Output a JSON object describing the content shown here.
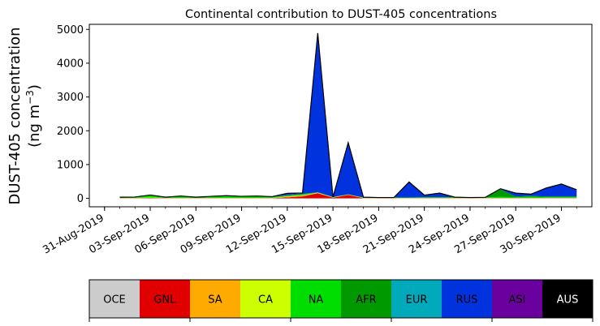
{
  "chart_data": {
    "type": "area",
    "title": "Continental contribution to DUST-405 concentrations",
    "ylabel_line1": "DUST-405 concentration",
    "ylabel_line2_prefix": "(ng m",
    "ylabel_line2_sup": "−3",
    "ylabel_line2_suffix": ")",
    "xlim": [
      "2019-08-30",
      "2019-10-02"
    ],
    "ylim": [
      -250,
      5150
    ],
    "yticks": [
      0,
      1000,
      2000,
      3000,
      4000,
      5000
    ],
    "xticks": [
      "31-Aug-2019",
      "03-Sep-2019",
      "06-Sep-2019",
      "09-Sep-2019",
      "12-Sep-2019",
      "15-Sep-2019",
      "18-Sep-2019",
      "21-Sep-2019",
      "24-Sep-2019",
      "27-Sep-2019",
      "30-Sep-2019"
    ],
    "xtick_dates": [
      "2019-08-31",
      "2019-09-03",
      "2019-09-06",
      "2019-09-09",
      "2019-09-12",
      "2019-09-15",
      "2019-09-18",
      "2019-09-21",
      "2019-09-24",
      "2019-09-27",
      "2019-09-30"
    ],
    "x": [
      "2019-09-01",
      "2019-09-02",
      "2019-09-03",
      "2019-09-04",
      "2019-09-05",
      "2019-09-06",
      "2019-09-07",
      "2019-09-08",
      "2019-09-09",
      "2019-09-10",
      "2019-09-11",
      "2019-09-12",
      "2019-09-13",
      "2019-09-14",
      "2019-09-15",
      "2019-09-16",
      "2019-09-17",
      "2019-09-18",
      "2019-09-19",
      "2019-09-20",
      "2019-09-21",
      "2019-09-22",
      "2019-09-23",
      "2019-09-24",
      "2019-09-25",
      "2019-09-26",
      "2019-09-27",
      "2019-09-28",
      "2019-09-29",
      "2019-09-30",
      "2019-10-01"
    ],
    "stack_order": [
      "GNL",
      "SA",
      "CA",
      "NA",
      "AFR",
      "EUR",
      "RUS",
      "ASI",
      "AUS",
      "OCE"
    ],
    "series": [
      {
        "name": "GNL",
        "color": "#e00000",
        "values": [
          5,
          5,
          10,
          5,
          5,
          5,
          5,
          5,
          5,
          5,
          5,
          30,
          60,
          150,
          20,
          100,
          5,
          5,
          5,
          5,
          5,
          5,
          5,
          5,
          5,
          5,
          5,
          5,
          5,
          5,
          5
        ]
      },
      {
        "name": "SA",
        "color": "#ffaa00",
        "values": [
          5,
          5,
          5,
          5,
          5,
          5,
          5,
          5,
          5,
          5,
          5,
          20,
          20,
          10,
          5,
          5,
          5,
          5,
          5,
          5,
          5,
          5,
          5,
          5,
          5,
          5,
          5,
          5,
          5,
          5,
          5
        ]
      },
      {
        "name": "CA",
        "color": "#ccff00",
        "values": [
          5,
          5,
          10,
          5,
          5,
          5,
          5,
          5,
          5,
          5,
          5,
          10,
          10,
          10,
          5,
          5,
          5,
          5,
          5,
          5,
          5,
          5,
          5,
          5,
          5,
          5,
          5,
          5,
          5,
          5,
          5
        ]
      },
      {
        "name": "NA",
        "color": "#00dd00",
        "values": [
          20,
          25,
          70,
          20,
          50,
          20,
          40,
          60,
          40,
          50,
          30,
          30,
          40,
          10,
          10,
          10,
          10,
          5,
          10,
          10,
          10,
          10,
          10,
          5,
          10,
          30,
          20,
          30,
          20,
          20,
          20
        ]
      },
      {
        "name": "AFR",
        "color": "#009900",
        "values": [
          0,
          0,
          0,
          0,
          0,
          0,
          0,
          0,
          0,
          0,
          0,
          0,
          0,
          0,
          0,
          0,
          0,
          0,
          0,
          0,
          10,
          10,
          10,
          5,
          5,
          220,
          20,
          30,
          20,
          20,
          20
        ]
      },
      {
        "name": "EUR",
        "color": "#00aabb",
        "values": [
          0,
          0,
          0,
          0,
          0,
          0,
          0,
          0,
          0,
          0,
          0,
          0,
          0,
          0,
          0,
          0,
          0,
          0,
          0,
          0,
          0,
          0,
          0,
          0,
          0,
          0,
          0,
          0,
          0,
          0,
          0
        ]
      },
      {
        "name": "RUS",
        "color": "#0033dd",
        "values": [
          0,
          0,
          5,
          0,
          5,
          0,
          5,
          5,
          5,
          5,
          5,
          30,
          20,
          4690,
          0,
          1520,
          10,
          5,
          0,
          460,
          60,
          120,
          0,
          0,
          0,
          20,
          100,
          50,
          250,
          370,
          200
        ]
      },
      {
        "name": "ASI",
        "color": "#6a009e",
        "values": [
          0,
          0,
          0,
          0,
          0,
          0,
          0,
          0,
          0,
          0,
          0,
          30,
          10,
          20,
          0,
          10,
          0,
          0,
          0,
          0,
          0,
          0,
          0,
          0,
          0,
          0,
          0,
          0,
          0,
          0,
          0
        ]
      },
      {
        "name": "AUS",
        "color": "#000000",
        "values": [
          0,
          0,
          0,
          0,
          0,
          0,
          0,
          0,
          0,
          0,
          0,
          0,
          0,
          0,
          0,
          0,
          0,
          0,
          0,
          0,
          0,
          0,
          0,
          0,
          0,
          0,
          0,
          0,
          0,
          0,
          0
        ]
      },
      {
        "name": "OCE",
        "color": "#cccccc",
        "values": [
          0,
          0,
          0,
          0,
          0,
          0,
          0,
          0,
          0,
          0,
          0,
          0,
          0,
          0,
          0,
          0,
          0,
          0,
          0,
          0,
          0,
          0,
          0,
          0,
          0,
          0,
          0,
          0,
          0,
          0,
          0
        ]
      }
    ],
    "legend": [
      {
        "label": "OCE",
        "color": "#cccccc",
        "text_color": "#000000"
      },
      {
        "label": "GNL",
        "color": "#e00000",
        "text_color": "#000000"
      },
      {
        "label": "SA",
        "color": "#ffaa00",
        "text_color": "#000000"
      },
      {
        "label": "CA",
        "color": "#ccff00",
        "text_color": "#000000"
      },
      {
        "label": "NA",
        "color": "#00dd00",
        "text_color": "#000000"
      },
      {
        "label": "AFR",
        "color": "#009900",
        "text_color": "#000000"
      },
      {
        "label": "EUR",
        "color": "#00aabb",
        "text_color": "#000000"
      },
      {
        "label": "RUS",
        "color": "#0033dd",
        "text_color": "#000000"
      },
      {
        "label": "ASI",
        "color": "#6a009e",
        "text_color": "#000000"
      },
      {
        "label": "AUS",
        "color": "#000000",
        "text_color": "#ffffff"
      }
    ],
    "legend_placement": "bottom",
    "grid": false
  }
}
